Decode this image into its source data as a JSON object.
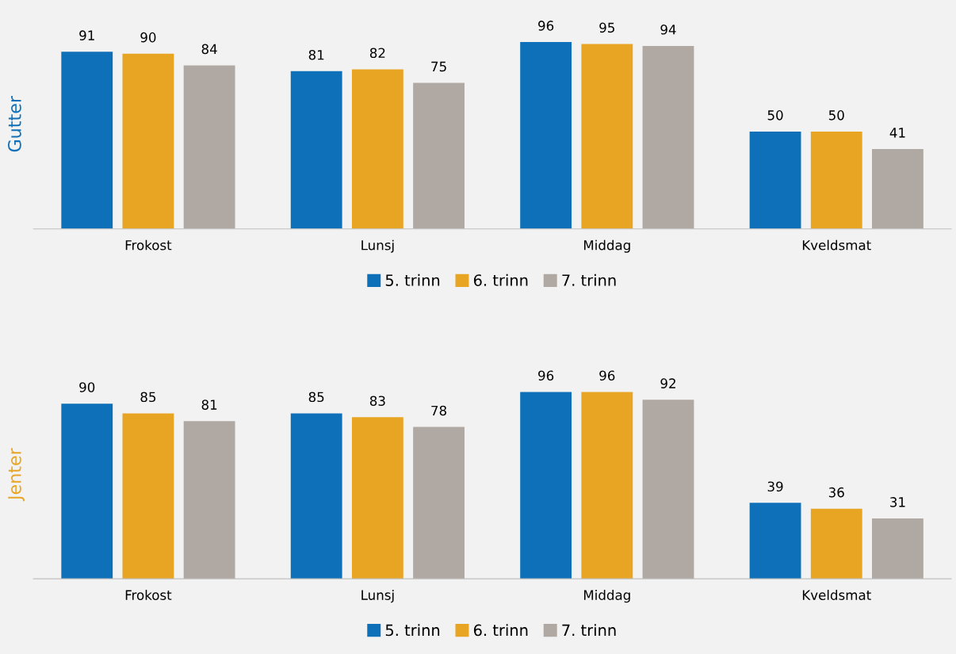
{
  "chart_data": [
    {
      "type": "bar",
      "ylabel": "Gutter",
      "categories": [
        "Frokost",
        "Lunsj",
        "Middag",
        "Kveldsmat"
      ],
      "series": [
        {
          "name": "5. trinn",
          "color": "#0e70b8",
          "values": [
            91,
            81,
            96,
            50
          ]
        },
        {
          "name": "6. trinn",
          "color": "#e8a423",
          "values": [
            90,
            82,
            95,
            50
          ]
        },
        {
          "name": "7. trinn",
          "color": "#b0a9a3",
          "values": [
            84,
            75,
            94,
            41
          ]
        }
      ],
      "data_labels": true,
      "legend": "bottom",
      "tick_labels": "x"
    },
    {
      "type": "bar",
      "ylabel": "Jenter",
      "categories": [
        "Frokost",
        "Lunsj",
        "Middag",
        "Kveldsmat"
      ],
      "series": [
        {
          "name": "5. trinn",
          "color": "#0e70b8",
          "values": [
            90,
            85,
            96,
            39
          ]
        },
        {
          "name": "6. trinn",
          "color": "#e8a423",
          "values": [
            85,
            83,
            96,
            36
          ]
        },
        {
          "name": "7. trinn",
          "color": "#b0a9a3",
          "values": [
            81,
            78,
            92,
            31
          ]
        }
      ],
      "data_labels": true,
      "legend": "bottom",
      "tick_labels": "x"
    }
  ]
}
